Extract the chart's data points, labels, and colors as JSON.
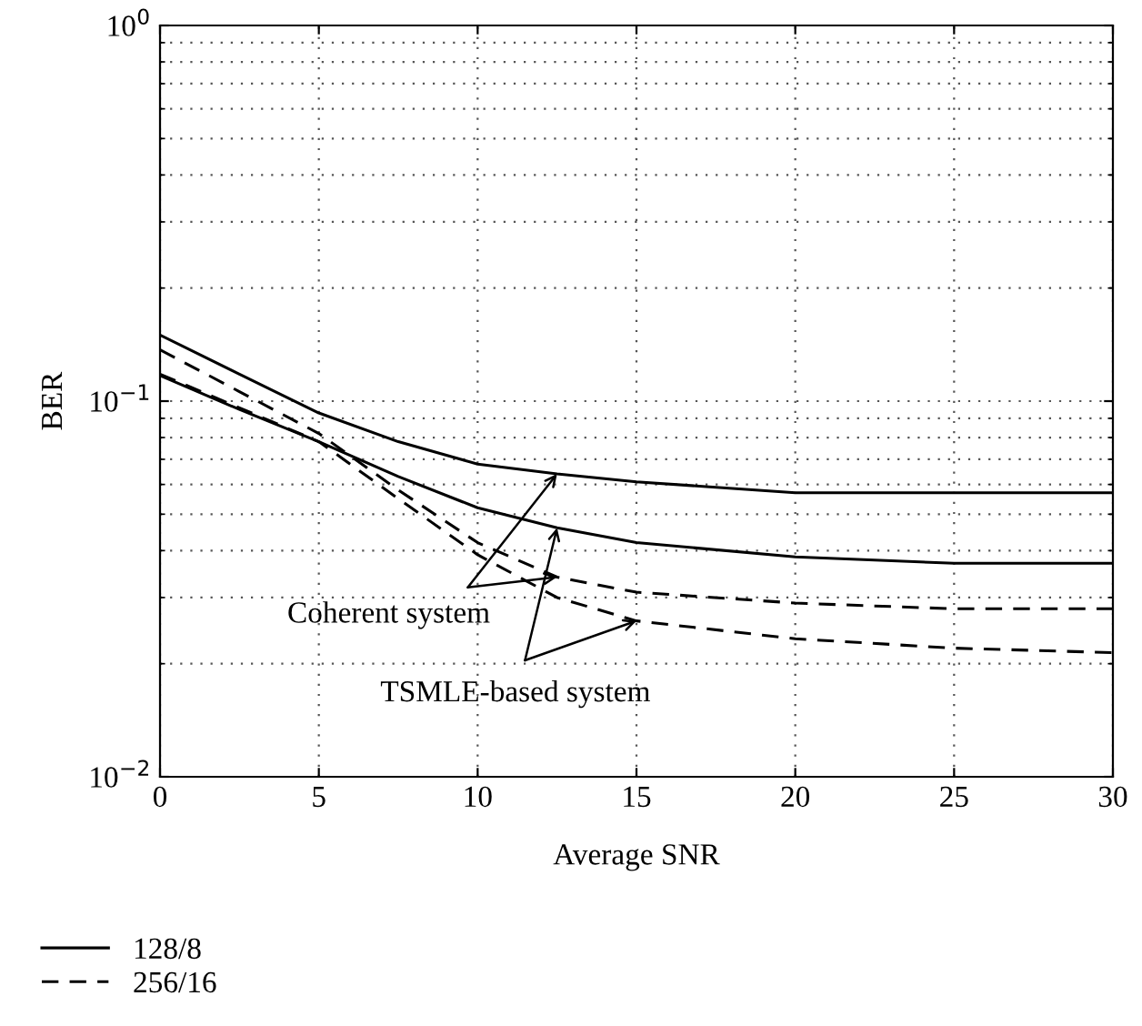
{
  "chart_data": {
    "type": "line",
    "xlabel": "Average SNR",
    "ylabel": "BER",
    "x": [
      0,
      2.5,
      5,
      7.5,
      10,
      12.5,
      15,
      20,
      25,
      30
    ],
    "series": [
      {
        "name": "128/8",
        "color": "#000000",
        "line_style": "solid",
        "values": [
          0.15,
          0.118,
          0.093,
          0.078,
          0.068,
          0.064,
          0.061,
          0.057,
          0.057,
          0.057
        ]
      },
      {
        "color": "#000000",
        "line_style": "solid",
        "values": [
          0.117,
          0.095,
          0.078,
          0.063,
          0.052,
          0.046,
          0.042,
          0.0385,
          0.037,
          0.037
        ]
      },
      {
        "name": "256/16",
        "color": "#000000",
        "line_style": "dashed",
        "values": [
          0.137,
          0.106,
          0.082,
          0.058,
          0.042,
          0.034,
          0.031,
          0.029,
          0.028,
          0.028
        ]
      },
      {
        "color": "#000000",
        "line_style": "dashed",
        "values": [
          0.118,
          0.096,
          0.078,
          0.055,
          0.039,
          0.03,
          0.026,
          0.0233,
          0.022,
          0.0214
        ]
      }
    ],
    "annotations": [
      {
        "text": "Coherent system",
        "x": 12.5,
        "y": 0.064
      },
      {
        "text": "TSMLE-based system",
        "x": 12.5,
        "y": 0.046
      }
    ],
    "log": "y",
    "xlim": [
      0,
      30
    ],
    "xticks": [
      0,
      5,
      10,
      15,
      20,
      25,
      30
    ],
    "ylim": [
      0.01,
      1
    ],
    "yticks": [
      {
        "value": 0.01,
        "label": "10$^{−2}$"
      },
      {
        "value": 0.1,
        "label": "10$^{−1}$"
      },
      {
        "value": 1,
        "label": "10$^{0}$"
      }
    ],
    "grid": true,
    "legend": "bottom left",
    "marker": "none"
  }
}
